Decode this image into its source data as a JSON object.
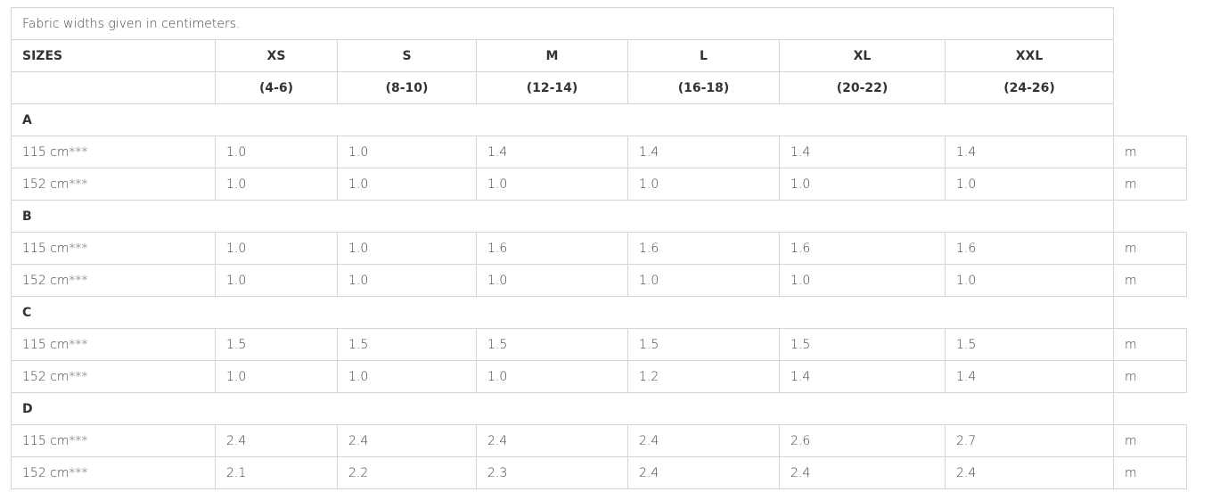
{
  "caption": "Fabric widths given in centimeters.",
  "header": {
    "sizes_label": "SIZES",
    "sizes": [
      "XS",
      "S",
      "M",
      "L",
      "XL",
      "XXL"
    ],
    "ranges": [
      "(4-6)",
      "(8-10)",
      "(12-14)",
      "(16-18)",
      "(20-22)",
      "(24-26)"
    ]
  },
  "unit": "m",
  "groups": [
    {
      "name": "A",
      "rows": [
        {
          "width": "115 cm***",
          "values": [
            "1.0",
            "1.0",
            "1.4",
            "1.4",
            "1.4",
            "1.4"
          ]
        },
        {
          "width": "152 cm***",
          "values": [
            "1.0",
            "1.0",
            "1.0",
            "1.0",
            "1.0",
            "1.0"
          ]
        }
      ]
    },
    {
      "name": "B",
      "rows": [
        {
          "width": "115 cm***",
          "values": [
            "1.0",
            "1.0",
            "1.6",
            "1.6",
            "1.6",
            "1.6"
          ]
        },
        {
          "width": "152 cm***",
          "values": [
            "1.0",
            "1.0",
            "1.0",
            "1.0",
            "1.0",
            "1.0"
          ]
        }
      ]
    },
    {
      "name": "C",
      "rows": [
        {
          "width": "115 cm***",
          "values": [
            "1.5",
            "1.5",
            "1.5",
            "1.5",
            "1.5",
            "1.5"
          ]
        },
        {
          "width": "152 cm***",
          "values": [
            "1.0",
            "1.0",
            "1.0",
            "1.2",
            "1.4",
            "1.4"
          ]
        }
      ]
    },
    {
      "name": "D",
      "rows": [
        {
          "width": "115 cm***",
          "values": [
            "2.4",
            "2.4",
            "2.4",
            "2.4",
            "2.6",
            "2.7"
          ]
        },
        {
          "width": "152 cm***",
          "values": [
            "2.1",
            "2.2",
            "2.3",
            "2.4",
            "2.4",
            "2.4"
          ]
        }
      ]
    }
  ]
}
